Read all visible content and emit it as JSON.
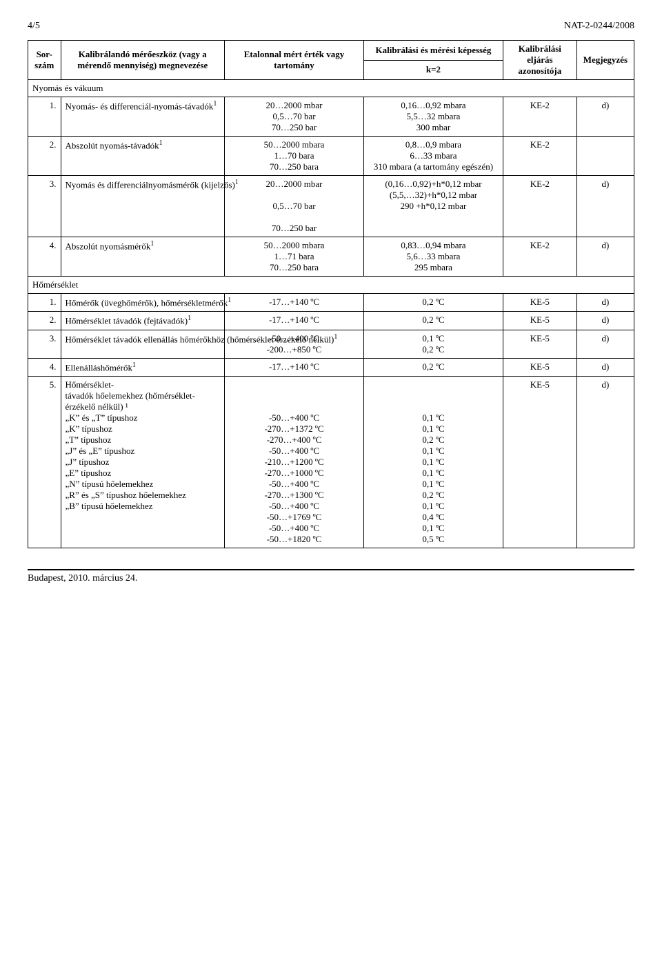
{
  "page_header": {
    "left": "4/5",
    "right": "NAT-2-0244/2008"
  },
  "columns": {
    "sor": "Sor-szám",
    "dev": "Kalibrálandó mérőeszköz (vagy a mérendő mennyiség) megnevezése",
    "range": "Etalonnal mért érték vagy tartomány",
    "cap": "Kalibrálási és mérési képesség",
    "k2": "k=2",
    "code": "Kalibrálási eljárás azonosítója",
    "note": "Megjegyzés"
  },
  "sections": [
    {
      "title": "Nyomás és vákuum",
      "rows": [
        {
          "n": "1.",
          "dev": "Nyomás- és differenciál-nyomás-távadók",
          "sup": "1",
          "range": "20…2000 mbar\n0,5…70 bar\n70…250 bar",
          "cap": "0,16…0,92 mbara\n5,5…32 mbara\n300 mbar",
          "code": "KE-2",
          "note": "d)"
        },
        {
          "n": "2.",
          "dev": "Abszolút nyomás-távadók",
          "sup": "1",
          "range": "50…2000 mbara\n1…70 bara\n70…250 bara",
          "cap": "0,8…0,9 mbara\n6…33 mbara\n310 mbara (a tartomány egészén)",
          "code": "KE-2",
          "note": ""
        },
        {
          "n": "3.",
          "dev": "Nyomás és differenciálnyomásmérők (kijelzős)",
          "sup": "1",
          "range": "20…2000 mbar\n\n0,5…70 bar\n\n70…250 bar",
          "cap": "(0,16…0,92)+h*0,12 mbar\n(5,5,…32)+h*0,12 mbar\n290 +h*0,12 mbar",
          "code": "KE-2",
          "note": "d)"
        },
        {
          "n": "4.",
          "dev": "Abszolút nyomásmérők",
          "sup": "1",
          "range": "50…2000 mbara\n1…71 bara\n70…250 bara",
          "cap": "0,83…0,94 mbara\n5,6…33 mbara\n295 mbara",
          "code": "KE-2",
          "note": "d)"
        }
      ]
    },
    {
      "title": "Hőmérséklet",
      "rows": [
        {
          "n": "1.",
          "dev": "Hőmérők (üveghőmérők), hőmérsékletmérők",
          "sup": "1",
          "range": "-17…+140 ºC",
          "cap": "0,2 ºC",
          "code": "KE-5",
          "note": "d)"
        },
        {
          "n": "2.",
          "dev": "Hőmérséklet távadók (fejtávadók)",
          "sup": "1",
          "range": "-17…+140 ºC",
          "cap": "0,2 ºC",
          "code": "KE-5",
          "note": "d)"
        },
        {
          "n": "3.",
          "dev": "Hőmérséklet távadók ellenállás hőmérőkhöz (hőmérséklet érzékelő nélkül)",
          "sup": "1",
          "range": "-50…+400 ºC\n-200…+850 ºC",
          "cap": "0,1 ºC\n0,2 ºC",
          "code": "KE-5",
          "note": "d)"
        },
        {
          "n": "4.",
          "dev": "Ellenálláshőmérők",
          "sup": "1",
          "range": "-17…+140 ºC",
          "cap": "0,2 ºC",
          "code": "KE-5",
          "note": "d)"
        },
        {
          "n": "5.",
          "dev": "Hőmérséklet-távadók hőelemekhez (hőmérséklet-érzékelő nélkül) ¹\n„K” és „T” típushoz\n„K” típushoz\n„T” típushoz\n„J” és „E” típushoz\n„J” típushoz\n„E” típushoz\n„N” típusú hőelemekhez\n„R” és „S” típushoz hőelemekhez\n„B” típusú hőelemekhez",
          "sup": "",
          "range": "\n\n\n-50…+400 ºC\n-270…+1372 ºC\n-270…+400 ºC\n-50…+400 ºC\n-210…+1200 ºC\n-270…+1000 ºC\n-50…+400 ºC\n-270…+1300 ºC\n-50…+400 ºC\n-50…+1769 ºC\n-50…+400 ºC\n-50…+1820 ºC",
          "cap": "\n\n\n0,1 ºC\n0,1 ºC\n0,2 ºC\n0,1 ºC\n0,1 ºC\n0,1 ºC\n0,1 ºC\n0,2 ºC\n0,1 ºC\n0,4 ºC\n0,1 ºC\n0,5 ºC",
          "code": "KE-5",
          "note": "d)"
        }
      ]
    }
  ],
  "footer": "Budapest, 2010. március 24."
}
